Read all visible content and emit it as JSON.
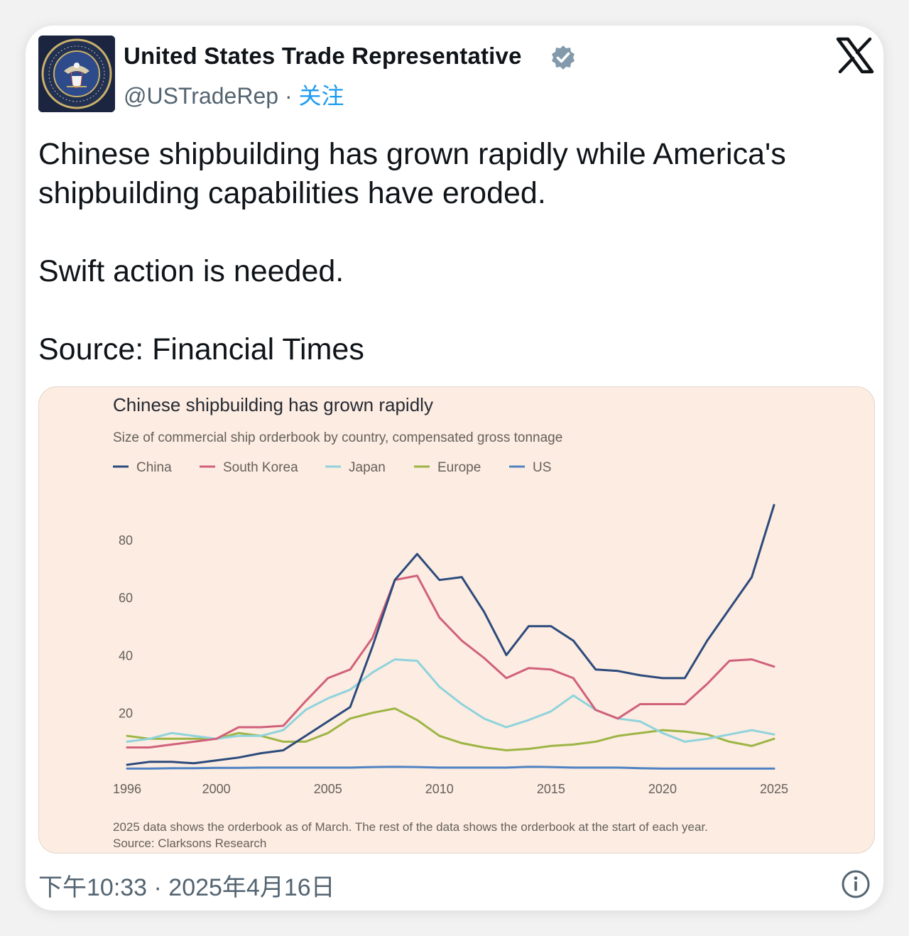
{
  "tweet": {
    "display_name": "United States Trade Representative",
    "handle": "@USTradeRep",
    "separator": " · ",
    "follow_label": "关注",
    "avatar_seal_text": "EXECUTIVE OFFICE OF THE PRESIDENT OF THE UNITED STATES",
    "text_lines": [
      "Chinese shipbuilding has grown rapidly while America's",
      "shipbuilding capabilities have eroded.",
      "Swift action is needed.",
      "Source: Financial Times"
    ],
    "timestamp": "下午10:33 · 2025年4月16日",
    "icons": {
      "verified": "verified-badge-icon",
      "logo": "x-logo-icon",
      "info": "info-icon"
    },
    "colors": {
      "verified_badge": "#829aab",
      "follow_link": "#1d9bf0",
      "chart_background": "#fcece1"
    }
  },
  "chart_data": {
    "type": "line",
    "title": "Chinese shipbuilding has grown rapidly",
    "subtitle": "Size of commercial ship orderbook by country, compensated gross tonnage",
    "footnote": "2025 data shows the orderbook as of March. The rest of the data shows the orderbook at the start of each year.",
    "source": "Source: Clarksons Research",
    "legend_position": "top-left",
    "grid": false,
    "xlim": [
      1996,
      2025
    ],
    "ylim": [
      0,
      90
    ],
    "x_ticks": [
      1996,
      2000,
      2005,
      2010,
      2015,
      2020,
      2025
    ],
    "y_ticks": [
      20,
      40,
      60,
      80
    ],
    "x": [
      1996,
      1997,
      1998,
      1999,
      2000,
      2001,
      2002,
      2003,
      2004,
      2005,
      2006,
      2007,
      2008,
      2009,
      2010,
      2011,
      2012,
      2013,
      2014,
      2015,
      2016,
      2017,
      2018,
      2019,
      2020,
      2021,
      2022,
      2023,
      2024,
      2025
    ],
    "series": [
      {
        "name": "China",
        "color": "#2c4a7c",
        "values": [
          2,
          3,
          3,
          2.5,
          3.5,
          4.5,
          6,
          7,
          12,
          17,
          22,
          43,
          66,
          75,
          66,
          67,
          55,
          40,
          50,
          50,
          45,
          35,
          34.5,
          33,
          32,
          32,
          45,
          56,
          67,
          92
        ]
      },
      {
        "name": "South Korea",
        "color": "#d0617a",
        "values": [
          8,
          8,
          9,
          10,
          11,
          15,
          15,
          15.5,
          24,
          32,
          35,
          46,
          66,
          67.5,
          53,
          45,
          39,
          32,
          35.5,
          35,
          32,
          21,
          18,
          23,
          23,
          23,
          30,
          38,
          38.5,
          36
        ]
      },
      {
        "name": "Japan",
        "color": "#8fd3dd",
        "values": [
          10,
          11,
          13,
          12,
          11,
          12,
          12,
          14,
          21,
          25,
          28,
          34,
          38.5,
          38,
          29,
          23,
          18,
          15,
          17.5,
          20.5,
          26,
          21,
          18,
          17,
          13,
          10,
          11,
          12.5,
          14,
          12.5
        ]
      },
      {
        "name": "Europe",
        "color": "#9db544",
        "values": [
          12,
          11,
          11,
          11,
          11,
          13,
          12,
          10,
          10,
          13,
          18,
          20,
          21.5,
          17.5,
          12,
          9.5,
          8,
          7,
          7.5,
          8.5,
          9,
          10,
          12,
          13,
          14,
          13.5,
          12.5,
          10,
          8.5,
          11
        ]
      },
      {
        "name": "US",
        "color": "#4e82c3",
        "values": [
          0.7,
          0.7,
          0.8,
          0.8,
          0.9,
          0.9,
          1,
          1,
          1,
          1,
          1,
          1.2,
          1.3,
          1.2,
          1,
          1,
          1,
          1,
          1.3,
          1.2,
          1,
          1,
          1,
          0.8,
          0.7,
          0.7,
          0.7,
          0.7,
          0.7,
          0.7
        ]
      }
    ]
  }
}
